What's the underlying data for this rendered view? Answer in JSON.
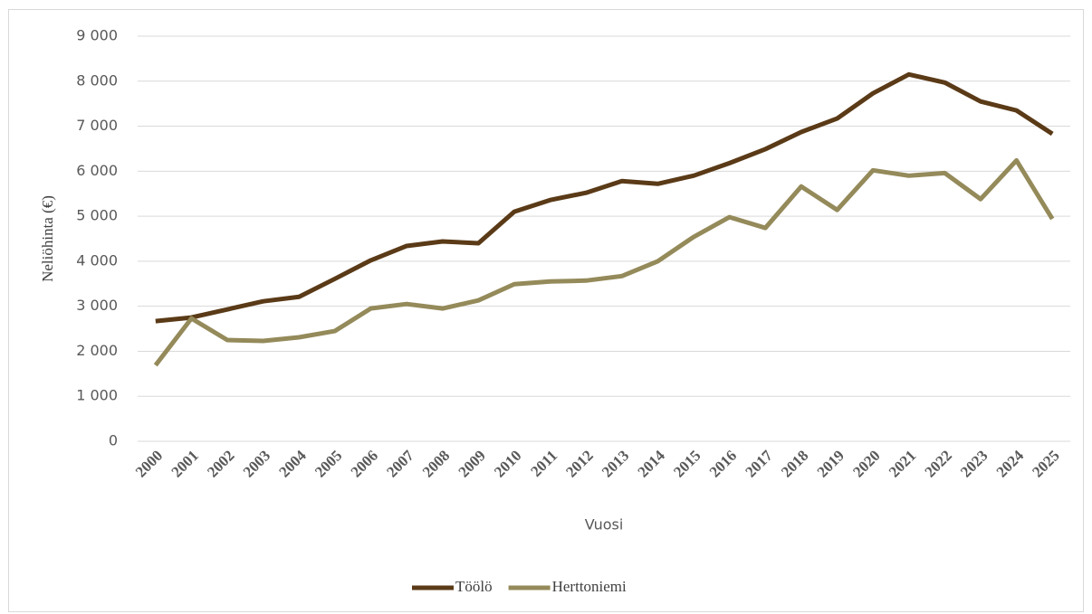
{
  "chart_data": {
    "type": "line",
    "xlabel": "Vuosi",
    "ylabel": "Neliöhinta (€)",
    "categories": [
      "2000",
      "2001",
      "2002",
      "2003",
      "2004",
      "2005",
      "2006",
      "2007",
      "2008",
      "2009",
      "2010",
      "2011",
      "2012",
      "2013",
      "2014",
      "2015",
      "2016",
      "2017",
      "2018",
      "2019",
      "2020",
      "2021",
      "2022",
      "2023",
      "2024",
      "2025"
    ],
    "series": [
      {
        "name": "Töölö",
        "color": "#5a3a17",
        "values": [
          2670,
          2750,
          2930,
          3110,
          3210,
          3610,
          4020,
          4340,
          4440,
          4400,
          5100,
          5360,
          5520,
          5780,
          5720,
          5900,
          6180,
          6490,
          6870,
          7170,
          7730,
          8150,
          7970,
          7550,
          7350,
          6830
        ]
      },
      {
        "name": "Herttoniemi",
        "color": "#948a5a",
        "values": [
          1690,
          2730,
          2250,
          2230,
          2310,
          2450,
          2950,
          3050,
          2950,
          3130,
          3490,
          3550,
          3570,
          3670,
          4000,
          4540,
          4980,
          4740,
          5660,
          5140,
          6020,
          5900,
          5960,
          5380,
          6240,
          4940
        ]
      }
    ],
    "ylim": [
      0,
      9000
    ],
    "yticks": [
      0,
      {
        "value": 1000,
        "label": "1 000"
      },
      {
        "value": 2000,
        "label": "2 000"
      },
      {
        "value": 3000,
        "label": "3 000"
      },
      {
        "value": 4000,
        "label": "4 000"
      },
      {
        "value": 5000,
        "label": "5 000"
      },
      {
        "value": 6000,
        "label": "6 000"
      },
      {
        "value": 7000,
        "label": "7 000"
      },
      {
        "value": 8000,
        "label": "8 000"
      },
      {
        "value": 9000,
        "label": "9 000"
      }
    ],
    "grid": true,
    "legend": "bottom"
  }
}
